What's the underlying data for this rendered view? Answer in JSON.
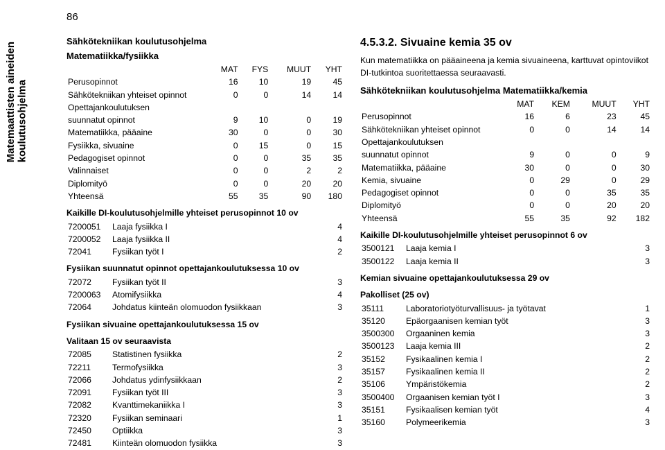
{
  "page_number": "86",
  "vertical_label_line1": "Matemaattisten aineiden",
  "vertical_label_line2": "koulutusohjelma",
  "left": {
    "title1": "Sähkötekniikan koulutusohjelma",
    "title2": "Matematiikka/fysiikka",
    "hdr": {
      "c1": "MAT",
      "c2": "FYS",
      "c3": "MUUT",
      "c4": "YHT"
    },
    "rows": [
      {
        "label": "Perusopinnot",
        "v": [
          "16",
          "10",
          "19",
          "45"
        ]
      },
      {
        "label": "Sähkötekniikan yhteiset opinnot",
        "v": [
          "0",
          "0",
          "14",
          "14"
        ]
      },
      {
        "label": "Opettajankoulutuksen",
        "wrap": true,
        "v": [
          "",
          "",
          "",
          ""
        ]
      },
      {
        "label": "suunnatut opinnot",
        "v": [
          "9",
          "10",
          "0",
          "19"
        ]
      },
      {
        "label": "Matematiikka, pääaine",
        "v": [
          "30",
          "0",
          "0",
          "30"
        ]
      },
      {
        "label": "Fysiikka, sivuaine",
        "v": [
          "0",
          "15",
          "0",
          "15"
        ]
      },
      {
        "label": "Pedagogiset opinnot",
        "v": [
          "0",
          "0",
          "35",
          "35"
        ]
      },
      {
        "label": "Valinnaiset",
        "v": [
          "0",
          "0",
          "2",
          "2"
        ]
      },
      {
        "label": "Diplomityö",
        "v": [
          "0",
          "0",
          "20",
          "20"
        ]
      },
      {
        "label": "Yhteensä",
        "v": [
          "55",
          "35",
          "90",
          "180"
        ]
      }
    ],
    "sub1": "Kaikille DI-koulutusohjelmille yhteiset perusopinnot 10 ov",
    "sub1_items": [
      {
        "code": "7200051",
        "name": "Laaja fysiikka I",
        "cr": "4"
      },
      {
        "code": "7200052",
        "name": "Laaja fysiikka II",
        "cr": "4"
      },
      {
        "code": "72041",
        "name": "Fysiikan työt I",
        "cr": "2"
      }
    ],
    "sub2": "Fysiikan suunnatut opinnot opettajankoulutuksessa 10 ov",
    "sub2_items": [
      {
        "code": "72072",
        "name": "Fysiikan työt II",
        "cr": "3"
      },
      {
        "code": "7200063",
        "name": "Atomifysiikka",
        "cr": "4"
      },
      {
        "code": "72064",
        "name": "Johdatus kiinteän olomuodon fysiikkaan",
        "cr": "3"
      }
    ],
    "sub3": "Fysiikan sivuaine opettajankoulutuksessa 15 ov",
    "sub4": "Valitaan 15 ov  seuraavista",
    "sub4_items": [
      {
        "code": "72085",
        "name": "Statistinen fysiikka",
        "cr": "2"
      },
      {
        "code": "72211",
        "name": "Termofysiikka",
        "cr": "3"
      },
      {
        "code": "72066",
        "name": "Johdatus ydinfysiikkaan",
        "cr": "2"
      },
      {
        "code": "72091",
        "name": "Fysiikan työt III",
        "cr": "3"
      },
      {
        "code": "72082",
        "name": "Kvanttimekaniikka I",
        "cr": "3"
      },
      {
        "code": "72320",
        "name": "Fysiikan seminaari",
        "cr": "1"
      },
      {
        "code": "72450",
        "name": "Optiikka",
        "cr": "3"
      },
      {
        "code": "72481",
        "name": "Kiinteän olomuodon fysiikka",
        "cr": "3"
      }
    ]
  },
  "right": {
    "big_title": "4.5.3.2. Sivuaine kemia 35 ov",
    "intro": "Kun matematiikka on pääaineena ja kemia sivuaineena, karttuvat opintoviikot DI-tutkintoa suoritettaessa seuraavasti.",
    "title2": "Sähkötekniikan koulutusohjelma Matematiikka/kemia",
    "hdr": {
      "c1": "MAT",
      "c2": "KEM",
      "c3": "MUUT",
      "c4": "YHT"
    },
    "rows": [
      {
        "label": "Perusopinnot",
        "v": [
          "16",
          "6",
          "23",
          "45"
        ]
      },
      {
        "label": "Sähkötekniikan yhteiset opinnot",
        "v": [
          "0",
          "0",
          "14",
          "14"
        ]
      },
      {
        "label": "Opettajankoulutuksen",
        "wrap": true,
        "v": [
          "",
          "",
          "",
          ""
        ]
      },
      {
        "label": "suunnatut opinnot",
        "v": [
          "9",
          "0",
          "0",
          "9"
        ]
      },
      {
        "label": "Matematiikka, pääaine",
        "v": [
          "30",
          "0",
          "0",
          "30"
        ]
      },
      {
        "label": "Kemia, sivuaine",
        "v": [
          "0",
          "29",
          "0",
          "29"
        ]
      },
      {
        "label": "Pedagogiset opinnot",
        "v": [
          "0",
          "0",
          "35",
          "35"
        ]
      },
      {
        "label": "Diplomityö",
        "v": [
          "0",
          "0",
          "20",
          "20"
        ]
      },
      {
        "label": "Yhteensä",
        "v": [
          "55",
          "35",
          "92",
          "182"
        ]
      }
    ],
    "sub1": "Kaikille DI-koulutusohjelmille yhteiset perusopinnot 6 ov",
    "sub1_items": [
      {
        "code": "3500121",
        "name": "Laaja kemia I",
        "cr": "3"
      },
      {
        "code": "3500122",
        "name": "Laaja kemia II",
        "cr": "3"
      }
    ],
    "sub2": "Kemian sivuaine opettajankoulutuksessa 29 ov",
    "sub3": "Pakolliset (25 ov)",
    "sub3_items": [
      {
        "code": "35111",
        "name": "Laboratoriotyöturvallisuus- ja työtavat",
        "cr": "1"
      },
      {
        "code": "35120",
        "name": "Epäorgaanisen kemian työt",
        "cr": "3"
      },
      {
        "code": "3500300",
        "name": "Orgaaninen kemia",
        "cr": "3"
      },
      {
        "code": "3500123",
        "name": "Laaja kemia III",
        "cr": "2"
      },
      {
        "code": "35152",
        "name": "Fysikaalinen kemia I",
        "cr": "2"
      },
      {
        "code": "35157",
        "name": "Fysikaalinen kemia II",
        "cr": "2"
      },
      {
        "code": "35106",
        "name": "Ympäristökemia",
        "cr": "2"
      },
      {
        "code": "3500400",
        "name": "Orgaanisen kemian työt I",
        "cr": "3"
      },
      {
        "code": "35151",
        "name": "Fysikaalisen kemian työt",
        "cr": "4"
      },
      {
        "code": "35160",
        "name": "Polymeerikemia",
        "cr": "3"
      }
    ]
  }
}
